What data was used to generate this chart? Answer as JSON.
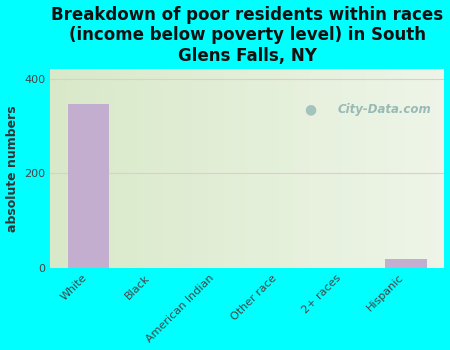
{
  "title": "Breakdown of poor residents within races\n(income below poverty level) in South\nGlens Falls, NY",
  "categories": [
    "White",
    "Black",
    "American Indian",
    "Other race",
    "2+ races",
    "Hispanic"
  ],
  "values": [
    348,
    0,
    0,
    0,
    0,
    18
  ],
  "bar_color": "#c4aed0",
  "ylabel": "absolute numbers",
  "ylim": [
    0,
    420
  ],
  "yticks": [
    0,
    200,
    400
  ],
  "background_color": "#00ffff",
  "plot_bg_left": "#d8e8c8",
  "plot_bg_right": "#eef5e8",
  "grid_color": "#e8c8d0",
  "watermark": "City-Data.com",
  "title_fontsize": 12,
  "ylabel_fontsize": 9,
  "tick_fontsize": 8
}
